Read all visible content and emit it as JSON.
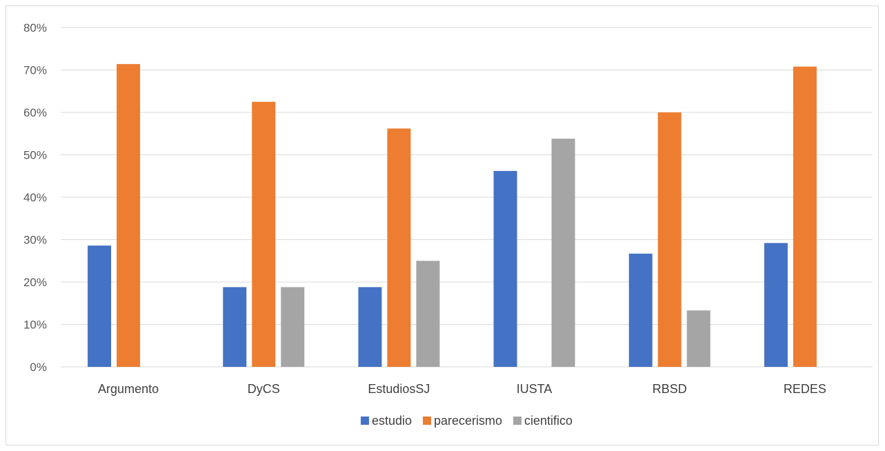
{
  "chart_data": {
    "type": "bar",
    "categories": [
      "Argumento",
      "DyCS",
      "EstudiosSJ",
      "IUSTA",
      "RBSD",
      "REDES"
    ],
    "series": [
      {
        "name": "estudio",
        "color": "#4472C4",
        "values": [
          0.286,
          0.188,
          0.188,
          0.462,
          0.267,
          0.292
        ]
      },
      {
        "name": "parecerismo",
        "color": "#ED7D31",
        "values": [
          0.714,
          0.625,
          0.562,
          0,
          0.6,
          0.708
        ]
      },
      {
        "name": "cientifico",
        "color": "#A5A5A5",
        "values": [
          0,
          0.188,
          0.25,
          0.538,
          0.133,
          0
        ]
      }
    ],
    "ylim": [
      0,
      0.8
    ],
    "yticks": [
      0,
      0.1,
      0.2,
      0.3,
      0.4,
      0.5,
      0.6,
      0.7,
      0.8
    ],
    "ytick_labels": [
      "0%",
      "10%",
      "20%",
      "30%",
      "40%",
      "50%",
      "60%",
      "70%",
      "80%"
    ],
    "grid": true,
    "legend_position": "bottom"
  }
}
